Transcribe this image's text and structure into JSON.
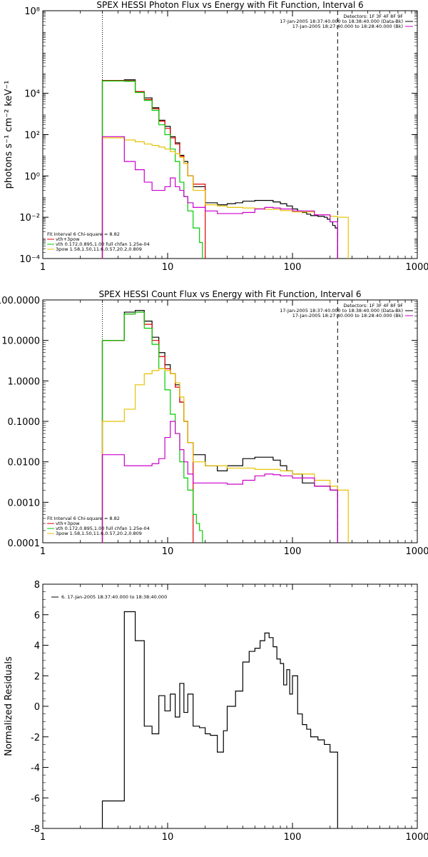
{
  "chart_data": [
    {
      "type": "line",
      "title": "SPEX HESSI Photon Flux vs Energy with Fit Function, Interval 6",
      "ylabel": "photons s⁻¹ cm⁻² keV⁻¹",
      "xlabel": "",
      "xscale": "log",
      "yscale": "log",
      "xlim": [
        1,
        1000
      ],
      "ylim": [
        0.0001,
        100000000
      ],
      "xticks": [
        1,
        10,
        100,
        1000
      ],
      "xtick_labels": [
        "1",
        "10",
        "100",
        "1000"
      ],
      "yticks": [
        0.0001,
        0.01,
        1,
        100,
        10000,
        100000000
      ],
      "ytick_labels": [
        "10⁻⁴",
        "10⁻²",
        "10⁰",
        "10²",
        "10⁴",
        "10⁸"
      ],
      "vlines": [
        {
          "x": 3.0,
          "style": "dotted"
        },
        {
          "x": 230,
          "style": "dashed"
        }
      ],
      "legend_top_right": [
        "Detectors: 1F 3F 4F 8F 9F",
        "17-Jan-2005 18:37:40.000 to 18:38:40.000 (Data-Bk)",
        "17-Jan-2005 18:27:40.000 to 18:28:40.000 (Bk)"
      ],
      "legend_bottom_left": [
        "Fit Interval 6   Chi-square = 8.82",
        "vth+3pow",
        "vth 0.172,0.895,1.00  full chfan 1.25e-04",
        "3pow 1.58,1.50,11.6,0.57,20.2,0.809"
      ],
      "series": [
        {
          "name": "17-Jan-2005 18:37:40.000 to 18:38:40.000 (Data-Bk)",
          "color": "#000000",
          "x": [
            3.0,
            4.5,
            5.5,
            6.5,
            7.5,
            8.5,
            9.5,
            10.5,
            11.5,
            12.5,
            13.5,
            14.5,
            16,
            20,
            25,
            30,
            35,
            40,
            50,
            60,
            70,
            80,
            90,
            100,
            110,
            120,
            130,
            140,
            150,
            160,
            170,
            180,
            190,
            200,
            210,
            220,
            230
          ],
          "values": [
            40000,
            45000,
            12000,
            6000,
            2000,
            500,
            250,
            80,
            40,
            10,
            5,
            1,
            0.3,
            0.05,
            0.04,
            0.045,
            0.05,
            0.06,
            0.065,
            0.065,
            0.055,
            0.045,
            0.035,
            0.025,
            0.02,
            0.017,
            0.014,
            0.012,
            0.012,
            0.011,
            0.011,
            0.01,
            0.008,
            0.006,
            0.004,
            0.003,
            0.0001
          ]
        },
        {
          "name": "vth+3pow",
          "color": "#e00000",
          "x": [
            3.0,
            4.5,
            5.5,
            6.5,
            7.5,
            8.5,
            9.5,
            10.5,
            11.5,
            12.5,
            13.5,
            14.5,
            16,
            20
          ],
          "values": [
            42000,
            40000,
            12000,
            5000,
            1800,
            450,
            200,
            70,
            35,
            9,
            4,
            1,
            0.4,
            0.1
          ]
        },
        {
          "name": "vth 0.172,0.895,1.00  full chfan 1.25e-04",
          "color": "#00cc00",
          "x": [
            3.0,
            4.5,
            5.5,
            6.5,
            7.5,
            8.5,
            9.5,
            10.5,
            11.5,
            12.5,
            13.5,
            14.5,
            16,
            18,
            19
          ],
          "values": [
            40000,
            38000,
            11000,
            4500,
            1500,
            300,
            100,
            20,
            5,
            0.5,
            0.1,
            0.02,
            0.003,
            0.0006,
            0.0001
          ]
        },
        {
          "name": "3pow 1.58,1.50,11.6,0.57,20.2,0.809",
          "color": "#e6c200",
          "x": [
            3.0,
            4.5,
            5.5,
            6.5,
            7.5,
            8.5,
            9.5,
            10.5,
            11.5,
            12.5,
            13.5,
            14.5,
            16,
            20,
            25,
            30,
            40,
            50,
            60,
            80,
            100,
            150,
            200,
            230,
            280
          ],
          "values": [
            70,
            55,
            45,
            35,
            30,
            25,
            20,
            15,
            12,
            8,
            4,
            1,
            0.2,
            0.04,
            0.035,
            0.03,
            0.028,
            0.026,
            0.024,
            0.021,
            0.018,
            0.013,
            0.011,
            0.01,
            0.0001
          ]
        },
        {
          "name": "",
          "color": "#cc00cc",
          "x": [
            3.0,
            4.5,
            5.5,
            6.5,
            7.5,
            8.5,
            9.5,
            10.5,
            11.5,
            12.5,
            13.5,
            14.5,
            16,
            20,
            25,
            30,
            40,
            50,
            60,
            70,
            80,
            100,
            150,
            200,
            230
          ],
          "values": [
            80,
            5,
            2,
            0.5,
            0.2,
            0.2,
            0.3,
            0.8,
            0.3,
            0.2,
            0.1,
            0.05,
            0.03,
            0.02,
            0.015,
            0.015,
            0.017,
            0.025,
            0.03,
            0.028,
            0.025,
            0.02,
            0.013,
            0.006,
            0.0001
          ]
        }
      ]
    },
    {
      "type": "line",
      "title": "SPEX HESSI Count Flux vs Energy with Fit Function, Interval 6",
      "ylabel": "",
      "xlabel": "",
      "xscale": "log",
      "yscale": "log",
      "xlim": [
        1,
        1000
      ],
      "ylim": [
        0.0001,
        100
      ],
      "xticks": [
        1,
        10,
        100,
        1000
      ],
      "xtick_labels": [
        "1",
        "10",
        "100",
        "1000"
      ],
      "yticks": [
        0.0001,
        0.001,
        0.01,
        0.1,
        1,
        10,
        100
      ],
      "ytick_labels": [
        "0.0001",
        "0.0010",
        "0.0100",
        "0.1000",
        "1.0000",
        "10.0000",
        "100.0000"
      ],
      "vlines": [
        {
          "x": 3.0,
          "style": "dotted"
        },
        {
          "x": 230,
          "style": "dashed"
        }
      ],
      "legend_top_right": [
        "Detectors: 1F 3F 4F 8F 9F",
        "17-Jan-2005 18:37:40.000 to 18:38:40.000 (Data-Bk)",
        "17-Jan-2005 18:27:40.000 to 18:28:40.000 (Bk)"
      ],
      "legend_bottom_left": [
        "Fit Interval 6   Chi-square = 8.82",
        "vth+3pow",
        "vth 0.172,0.895,1.00  full chfan 1.25e-04",
        "3pow 1.58,1.50,11.6,0.57,20.2,0.809"
      ],
      "series": [
        {
          "name": "17-Jan-2005 18:37:40.000 to 18:38:40.000 (Data-Bk)",
          "color": "#000000",
          "x": [
            3.0,
            4.5,
            5.5,
            6.5,
            7.5,
            8.5,
            9.5,
            10.5,
            11.5,
            12.5,
            13.5,
            14.5,
            16,
            20,
            25,
            30,
            40,
            50,
            60,
            70,
            80,
            90,
            100,
            120,
            150,
            200,
            230
          ],
          "values": [
            10,
            50,
            55,
            30,
            12,
            5,
            2.5,
            1.5,
            0.8,
            0.3,
            0.1,
            0.03,
            0.015,
            0.008,
            0.006,
            0.008,
            0.012,
            0.013,
            0.013,
            0.011,
            0.008,
            0.006,
            0.005,
            0.003,
            0.0025,
            0.002,
            0.0001
          ]
        },
        {
          "name": "vth+3pow",
          "color": "#e00000",
          "x": [
            3.0,
            4.5,
            5.5,
            6.5,
            7.5,
            8.5,
            9.5,
            10.5,
            11.5,
            12.5,
            13.5,
            14.5,
            16
          ],
          "values": [
            10,
            45,
            50,
            25,
            10,
            4,
            2,
            1.5,
            0.7,
            0.3,
            0.1,
            0.03,
            0.01
          ]
        },
        {
          "name": "vth 0.172,0.895,1.00  full chfan 1.25e-04",
          "color": "#00cc00",
          "x": [
            3.0,
            4.5,
            5.5,
            6.5,
            7.5,
            8.5,
            9.5,
            10.5,
            11.5,
            12.5,
            13.5,
            14.5,
            16,
            17,
            18,
            19
          ],
          "values": [
            10,
            45,
            50,
            20,
            8,
            2,
            0.6,
            0.15,
            0.05,
            0.01,
            0.004,
            0.002,
            0.0005,
            0.0003,
            0.0002,
            0.0001
          ]
        },
        {
          "name": "3pow 1.58,1.50,11.6,0.57,20.2,0.809",
          "color": "#e6c200",
          "x": [
            3.0,
            4.5,
            5.5,
            6.5,
            7.5,
            8.5,
            9.5,
            10.5,
            11.5,
            12.5,
            13.5,
            14.5,
            16,
            20,
            30,
            50,
            80,
            100,
            150,
            200,
            230,
            280
          ],
          "values": [
            0.1,
            0.2,
            0.8,
            1.5,
            1.8,
            2.0,
            1.8,
            1.5,
            0.9,
            0.4,
            0.1,
            0.03,
            0.01,
            0.008,
            0.007,
            0.0065,
            0.006,
            0.005,
            0.0035,
            0.0025,
            0.002,
            0.0001
          ]
        },
        {
          "name": "",
          "color": "#cc00cc",
          "x": [
            3.0,
            4.5,
            5.5,
            6.5,
            7.5,
            8.5,
            9.5,
            10.5,
            11.5,
            12.5,
            13.5,
            14.5,
            16,
            20,
            25,
            30,
            40,
            50,
            60,
            70,
            80,
            100,
            150,
            200,
            230
          ],
          "values": [
            0.015,
            0.008,
            0.008,
            0.008,
            0.009,
            0.012,
            0.04,
            0.1,
            0.05,
            0.02,
            0.01,
            0.005,
            0.003,
            0.003,
            0.003,
            0.0028,
            0.0035,
            0.0045,
            0.005,
            0.0048,
            0.0045,
            0.004,
            0.0025,
            0.002,
            0.0001
          ]
        }
      ]
    },
    {
      "type": "line",
      "title": "",
      "ylabel": "Normalized Residuals",
      "xlabel": "",
      "xscale": "log",
      "yscale": "linear",
      "xlim": [
        1,
        1000
      ],
      "ylim": [
        -8,
        8
      ],
      "xticks": [
        1,
        10,
        100,
        1000
      ],
      "xtick_labels": [
        "1",
        "10",
        "100",
        "1000"
      ],
      "yticks": [
        -8,
        -6,
        -4,
        -2,
        0,
        2,
        4,
        6,
        8
      ],
      "ytick_labels": [
        "-8",
        "-6",
        "-4",
        "-2",
        "0",
        "2",
        "4",
        "6",
        "8"
      ],
      "legend_top_left": [
        "6. 17-Jan-2005 18:37:40.000 to 18:38:40.000"
      ],
      "series": [
        {
          "name": "6. 17-Jan-2005 18:37:40.000 to 18:38:40.000",
          "color": "#000000",
          "x": [
            3.0,
            4.5,
            5.5,
            6.5,
            7.5,
            8.5,
            9.5,
            10.5,
            11.5,
            12.5,
            13.5,
            14.5,
            16,
            18,
            20,
            22,
            25,
            28,
            30,
            35,
            40,
            45,
            50,
            55,
            60,
            65,
            70,
            75,
            80,
            85,
            90,
            95,
            100,
            110,
            120,
            130,
            140,
            160,
            180,
            200,
            230
          ],
          "values": [
            -6.2,
            6.2,
            4.3,
            -1.3,
            -1.8,
            0.7,
            -0.3,
            0.8,
            -0.7,
            1.5,
            -0.4,
            0.8,
            -1.3,
            -1.4,
            -1.8,
            -1.9,
            -3.0,
            -1.6,
            0,
            1.0,
            2.9,
            3.6,
            3.8,
            4.3,
            4.8,
            4.5,
            3.9,
            3.1,
            2.8,
            1.4,
            2.4,
            0.8,
            2.0,
            -0.5,
            -1.2,
            -1.5,
            -2.0,
            -2.2,
            -2.5,
            -3.0,
            -8.0
          ]
        }
      ]
    }
  ]
}
